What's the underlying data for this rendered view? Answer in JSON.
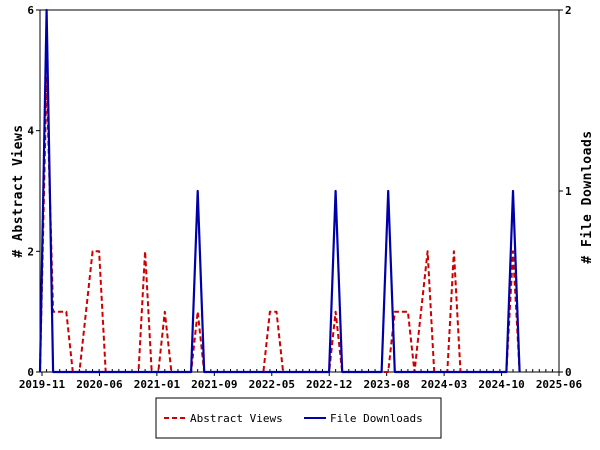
{
  "chart_data": {
    "type": "line",
    "title": "",
    "y_left_label": "# Abstract Views",
    "y_right_label": "# File Downloads",
    "y_left_range": [
      0,
      6
    ],
    "y_right_range": [
      0,
      2
    ],
    "y_left_ticks": [
      "0",
      "2",
      "4",
      "6"
    ],
    "y_right_ticks": [
      "0",
      "1",
      "2"
    ],
    "x_ticks": [
      "2019-11",
      "2020-06",
      "2021-01",
      "2021-09",
      "2022-05",
      "2022-12",
      "2023-08",
      "2024-03",
      "2024-10",
      "2025-06"
    ],
    "x_range": [
      0,
      79
    ],
    "grid": false,
    "legend_placement": "bottom",
    "colors": {
      "abstract_views": "#cc0000",
      "file_downloads": "#0000aa"
    },
    "series": [
      {
        "name": "Abstract Views",
        "axis": "left",
        "style": "dashed",
        "color": "#cc0000",
        "points": [
          [
            0,
            0
          ],
          [
            1,
            4.9
          ],
          [
            2,
            1
          ],
          [
            3,
            1
          ],
          [
            4,
            1
          ],
          [
            5,
            0
          ],
          [
            6,
            0
          ],
          [
            7,
            1
          ],
          [
            8,
            2
          ],
          [
            9,
            2
          ],
          [
            10,
            0
          ],
          [
            11,
            0
          ],
          [
            12,
            0
          ],
          [
            13,
            0
          ],
          [
            14,
            0
          ],
          [
            15,
            0
          ],
          [
            16,
            2
          ],
          [
            17,
            0
          ],
          [
            18,
            0
          ],
          [
            19,
            1
          ],
          [
            20,
            0
          ],
          [
            21,
            0
          ],
          [
            22,
            0
          ],
          [
            23,
            0
          ],
          [
            24,
            1
          ],
          [
            25,
            0
          ],
          [
            26,
            0
          ],
          [
            27,
            0
          ],
          [
            28,
            0
          ],
          [
            29,
            0
          ],
          [
            30,
            0
          ],
          [
            31,
            0
          ],
          [
            32,
            0
          ],
          [
            33,
            0
          ],
          [
            34,
            0
          ],
          [
            35,
            1
          ],
          [
            36,
            1
          ],
          [
            37,
            0
          ],
          [
            38,
            0
          ],
          [
            39,
            0
          ],
          [
            40,
            0
          ],
          [
            41,
            0
          ],
          [
            42,
            0
          ],
          [
            43,
            0
          ],
          [
            44,
            0
          ],
          [
            45,
            1
          ],
          [
            46,
            0
          ],
          [
            47,
            0
          ],
          [
            48,
            0
          ],
          [
            49,
            0
          ],
          [
            50,
            0
          ],
          [
            51,
            0
          ],
          [
            52,
            0
          ],
          [
            53,
            0
          ],
          [
            54,
            1
          ],
          [
            55,
            1
          ],
          [
            56,
            1
          ],
          [
            57,
            0
          ],
          [
            58,
            1
          ],
          [
            59,
            2
          ],
          [
            60,
            0
          ],
          [
            61,
            0
          ],
          [
            62,
            0
          ],
          [
            63,
            2
          ],
          [
            64,
            0
          ],
          [
            65,
            0
          ],
          [
            66,
            0
          ],
          [
            67,
            0
          ],
          [
            68,
            0
          ],
          [
            69,
            0
          ],
          [
            70,
            0
          ],
          [
            71,
            0
          ],
          [
            72,
            2
          ],
          [
            73,
            0
          ]
        ]
      },
      {
        "name": "File Downloads",
        "axis": "right",
        "style": "solid",
        "color": "#0000aa",
        "points": [
          [
            0,
            0
          ],
          [
            1,
            2
          ],
          [
            2,
            0
          ],
          [
            3,
            0
          ],
          [
            10,
            0
          ],
          [
            20,
            0
          ],
          [
            23,
            0
          ],
          [
            24,
            1
          ],
          [
            25,
            0
          ],
          [
            30,
            0
          ],
          [
            40,
            0
          ],
          [
            44,
            0
          ],
          [
            45,
            1
          ],
          [
            46,
            0
          ],
          [
            50,
            0
          ],
          [
            52,
            0
          ],
          [
            53,
            1
          ],
          [
            54,
            0
          ],
          [
            60,
            0
          ],
          [
            70,
            0
          ],
          [
            71,
            0
          ],
          [
            72,
            1
          ],
          [
            73,
            0
          ]
        ]
      }
    ]
  }
}
